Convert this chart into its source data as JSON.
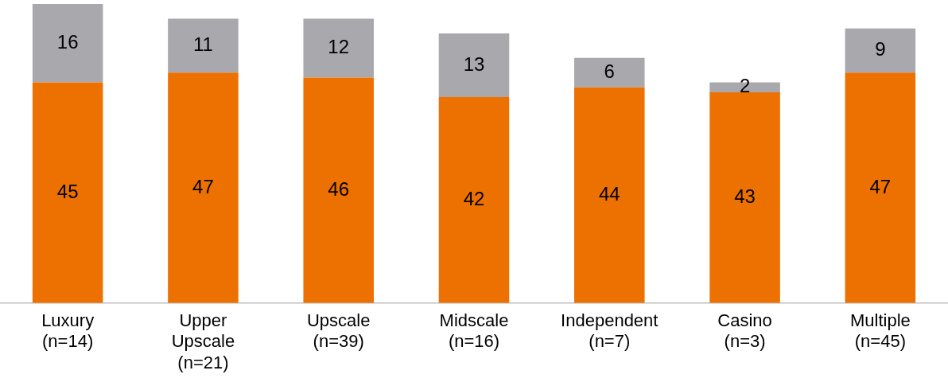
{
  "chart_data": {
    "type": "bar",
    "stacked": true,
    "data_labels": true,
    "legend": false,
    "grid": false,
    "categories": [
      "Luxury (n=14)",
      "Upper Upscale (n=21)",
      "Upscale (n=39)",
      "Midscale (n=16)",
      "Independent (n=7)",
      "Casino (n=3)",
      "Multiple (n=45)"
    ],
    "series": [
      {
        "color": "#ed7100",
        "values": [
          45,
          47,
          46,
          42,
          44,
          43,
          47
        ]
      },
      {
        "color": "#a9a8ad",
        "values": [
          16,
          11,
          12,
          13,
          6,
          2,
          9
        ]
      }
    ]
  }
}
